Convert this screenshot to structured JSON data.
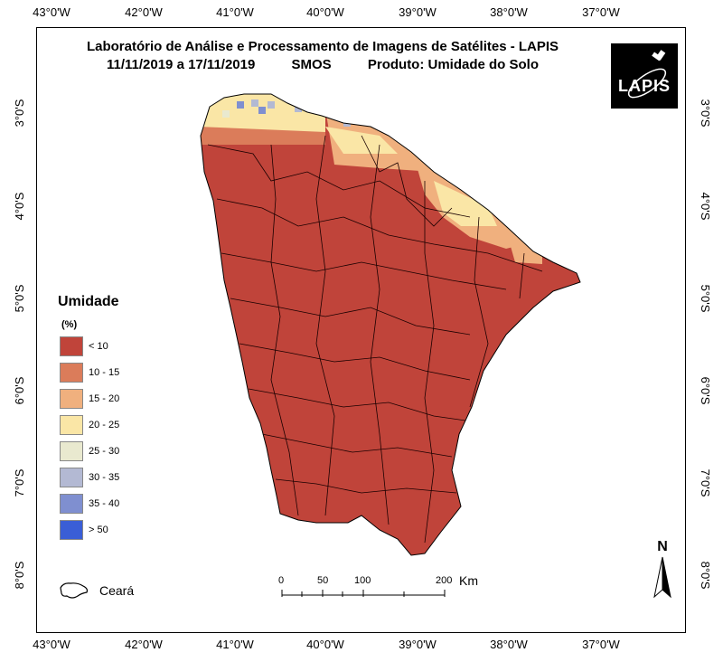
{
  "title": {
    "line1": "Laboratório de Análise e Processamento de Imagens de Satélites - LAPIS",
    "period": "11/11/2019  a  17/11/2019",
    "sensor": "SMOS",
    "product": "Produto: Umidade do Solo"
  },
  "logo": {
    "text": "LAPIS"
  },
  "axes": {
    "top_labels": [
      "43°0'W",
      "42°0'W",
      "41°0'W",
      "40°0'W",
      "39°0'W",
      "38°0'W",
      "37°0'W"
    ],
    "bottom_labels": [
      "43°0'W",
      "42°0'W",
      "41°0'W",
      "40°0'W",
      "39°0'W",
      "38°0'W",
      "37°0'W"
    ],
    "left_labels": [
      "3°0'S",
      "4°0'S",
      "5°0'S",
      "6°0'S",
      "7°0'S",
      "8°0'S"
    ],
    "right_labels": [
      "3°0'S",
      "4°0'S",
      "5°0'S",
      "6°0'S",
      "7°0'S",
      "8°0'S"
    ]
  },
  "legend": {
    "title": "Umidade",
    "unit": "(%)",
    "items": [
      {
        "label": "< 10",
        "color": "#c0443a"
      },
      {
        "label": "10 - 15",
        "color": "#db7c5a"
      },
      {
        "label": "15 - 20",
        "color": "#f0b07e"
      },
      {
        "label": "20 - 25",
        "color": "#fae6a6"
      },
      {
        "label": "25 - 30",
        "color": "#e9e9cf"
      },
      {
        "label": "30 - 35",
        "color": "#b3b9d3"
      },
      {
        "label": "35 - 40",
        "color": "#7f8fd0"
      },
      {
        "label": "> 50",
        "color": "#3a5ed6"
      }
    ],
    "state_label": "Ceará"
  },
  "scale_bar": {
    "ticks": [
      "0",
      "50",
      "100",
      "200"
    ],
    "unit": "Km"
  },
  "north_arrow": {
    "label": "N"
  }
}
